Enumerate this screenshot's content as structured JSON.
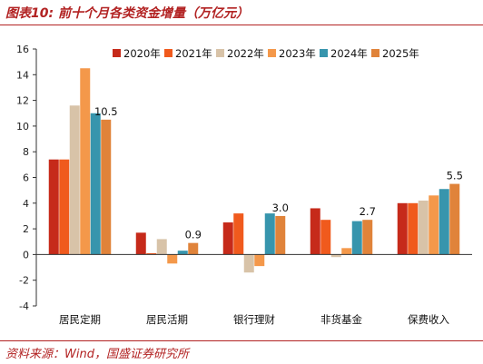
{
  "header": {
    "title": "图表10:  前十个月各类资金增量（万亿元）"
  },
  "footer": {
    "source": "资料来源：Wind，国盛证券研究所"
  },
  "chart_data": {
    "type": "bar",
    "categories": [
      "居民定期",
      "居民活期",
      "银行理财",
      "非货基金",
      "保费收入"
    ],
    "series": [
      {
        "name": "2020年",
        "color": "#c62a1a",
        "values": [
          7.4,
          1.7,
          2.5,
          3.6,
          4.0
        ]
      },
      {
        "name": "2021年",
        "color": "#f05a1d",
        "values": [
          7.4,
          0.1,
          3.2,
          2.7,
          4.0
        ]
      },
      {
        "name": "2022年",
        "color": "#d8c3a8",
        "values": [
          11.6,
          1.2,
          -1.4,
          -0.2,
          4.2
        ]
      },
      {
        "name": "2023年",
        "color": "#f4984a",
        "values": [
          14.5,
          -0.7,
          -0.9,
          0.5,
          4.6
        ]
      },
      {
        "name": "2024年",
        "color": "#3795ad",
        "values": [
          11.0,
          0.3,
          3.2,
          2.6,
          5.1
        ]
      },
      {
        "name": "2025年",
        "color": "#e0833a",
        "values": [
          10.5,
          0.9,
          3.0,
          2.7,
          5.5
        ]
      }
    ],
    "data_labels": [
      "10.5",
      "0.9",
      "3.0",
      "2.7",
      "5.5"
    ],
    "yticks": [
      "16",
      "14",
      "12",
      "10",
      "8",
      "6",
      "4",
      "2",
      "0",
      "-2",
      "-4"
    ],
    "ylim": [
      -4,
      16
    ],
    "xlabel": "",
    "ylabel": "",
    "legend_position": "top",
    "grid": false
  }
}
